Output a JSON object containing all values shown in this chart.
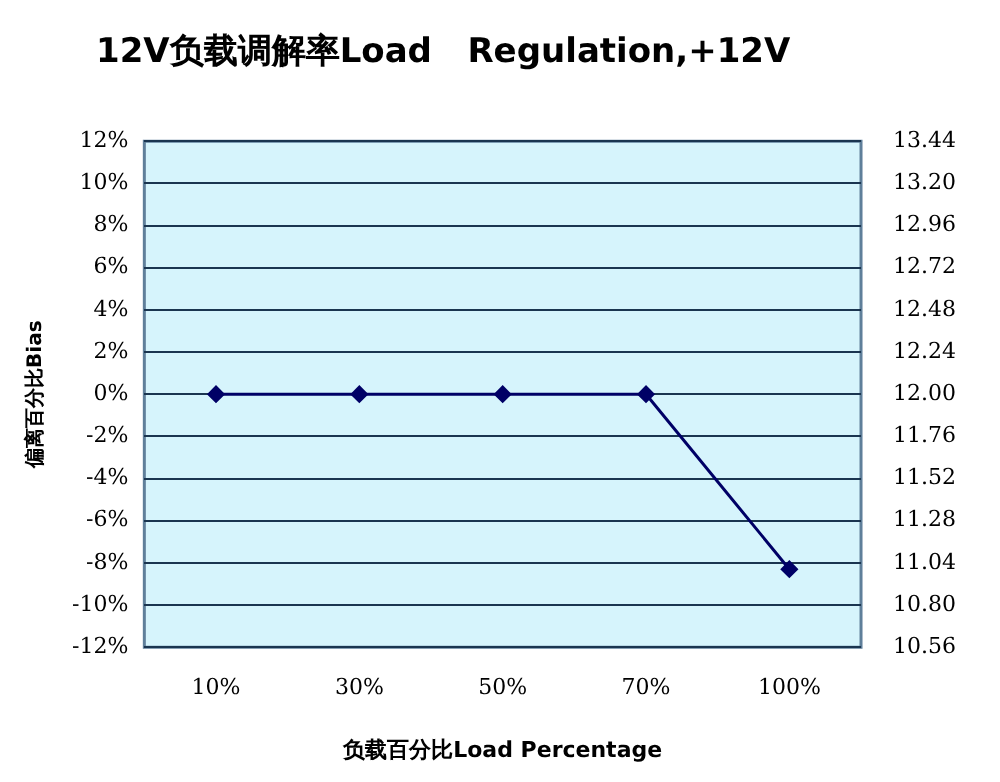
{
  "chart_data": {
    "type": "line",
    "title": "12V负载调解率Load   Regulation,+12V",
    "xlabel": "负载百分比Load Percentage",
    "ylabel": "偏离百分比Bias",
    "categories": [
      "10%",
      "30%",
      "50%",
      "70%",
      "100%"
    ],
    "series": [
      {
        "color": "#000066",
        "values": [
          0,
          0,
          0,
          0,
          -8.3
        ]
      }
    ],
    "ylim": [
      -12,
      12
    ],
    "yticks": [
      {
        "value": -12,
        "label": "-12%"
      },
      {
        "value": -10,
        "label": "-10%"
      },
      {
        "value": -8,
        "label": "-8%"
      },
      {
        "value": -6,
        "label": "-6%"
      },
      {
        "value": -4,
        "label": "-4%"
      },
      {
        "value": -2,
        "label": "-2%"
      },
      {
        "value": 0,
        "label": "0%"
      },
      {
        "value": 2,
        "label": "2%"
      },
      {
        "value": 4,
        "label": "4%"
      },
      {
        "value": 6,
        "label": "6%"
      },
      {
        "value": 8,
        "label": "8%"
      },
      {
        "value": 10,
        "label": "10%"
      },
      {
        "value": 12,
        "label": "12%"
      }
    ],
    "y2lim": [
      10.56,
      13.44
    ],
    "y2ticks": [
      {
        "value": 10.56,
        "label": "10.56"
      },
      {
        "value": 10.8,
        "label": "10.80"
      },
      {
        "value": 11.04,
        "label": "11.04"
      },
      {
        "value": 11.28,
        "label": "11.28"
      },
      {
        "value": 11.52,
        "label": "11.52"
      },
      {
        "value": 11.76,
        "label": "11.76"
      },
      {
        "value": 12,
        "label": "12.00"
      },
      {
        "value": 12.24,
        "label": "12.24"
      },
      {
        "value": 12.48,
        "label": "12.48"
      },
      {
        "value": 12.72,
        "label": "12.72"
      },
      {
        "value": 12.96,
        "label": "12.96"
      },
      {
        "value": 13.2,
        "label": "13.20"
      },
      {
        "value": 13.44,
        "label": "13.44"
      }
    ],
    "grid": "y",
    "marker": "diamond",
    "line_style": "solid",
    "legend": false
  }
}
